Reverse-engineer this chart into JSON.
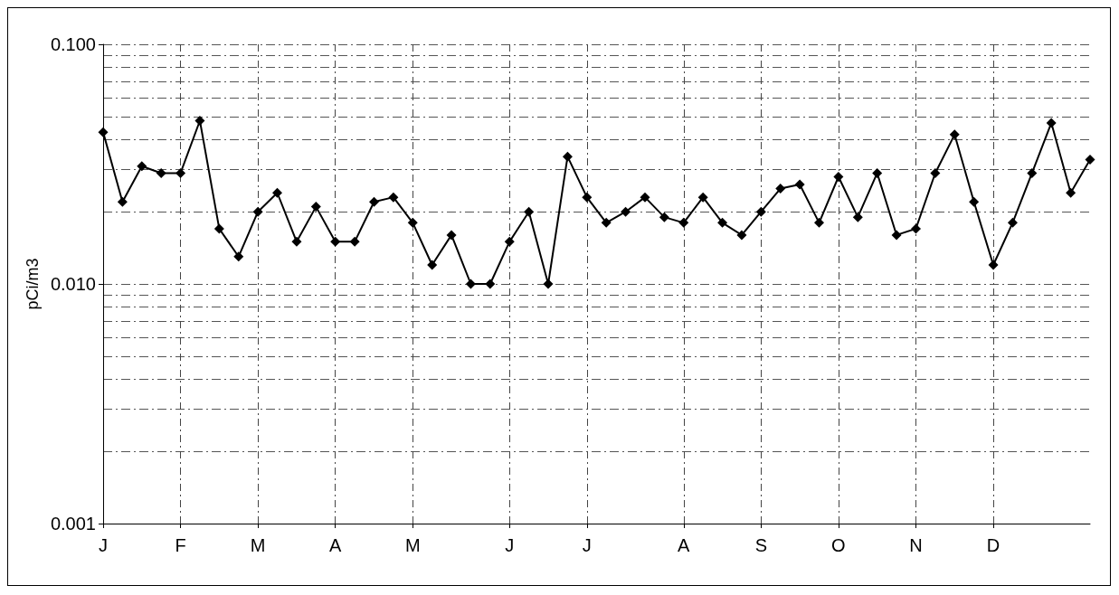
{
  "chart_data": {
    "type": "line",
    "ylabel": "pCi/m3",
    "log": "y",
    "grid": true,
    "marker": "diamond",
    "categories": [
      "J",
      null,
      null,
      null,
      "F",
      null,
      null,
      null,
      "M",
      null,
      null,
      null,
      "A",
      null,
      null,
      null,
      "M",
      null,
      null,
      null,
      null,
      "J",
      null,
      null,
      null,
      "J",
      null,
      null,
      null,
      null,
      "A",
      null,
      null,
      null,
      "S",
      null,
      null,
      null,
      "O",
      null,
      null,
      null,
      "N",
      null,
      null,
      null,
      "D",
      null,
      null,
      null,
      null,
      null
    ],
    "series": [
      {
        "color": "#000000",
        "values": [
          0.043,
          0.022,
          0.031,
          0.029,
          0.029,
          0.048,
          0.017,
          0.013,
          0.02,
          0.024,
          0.015,
          0.021,
          0.015,
          0.015,
          0.022,
          0.023,
          0.018,
          0.012,
          0.016,
          0.01,
          0.01,
          0.015,
          0.02,
          0.01,
          0.034,
          0.023,
          0.018,
          0.02,
          0.023,
          0.019,
          0.018,
          0.023,
          0.018,
          0.016,
          0.02,
          0.025,
          0.026,
          0.018,
          0.028,
          0.019,
          0.029,
          0.016,
          0.017,
          0.029,
          0.042,
          0.022,
          0.012,
          0.018,
          0.029,
          0.047,
          0.024,
          0.033
        ]
      }
    ],
    "ylim": [
      0.001,
      0.1
    ],
    "yticks": [
      {
        "value": 0.001,
        "label": "0.001"
      },
      {
        "value": 0.01,
        "label": "0.010"
      },
      {
        "value": 0.1,
        "label": "0.100"
      }
    ]
  }
}
